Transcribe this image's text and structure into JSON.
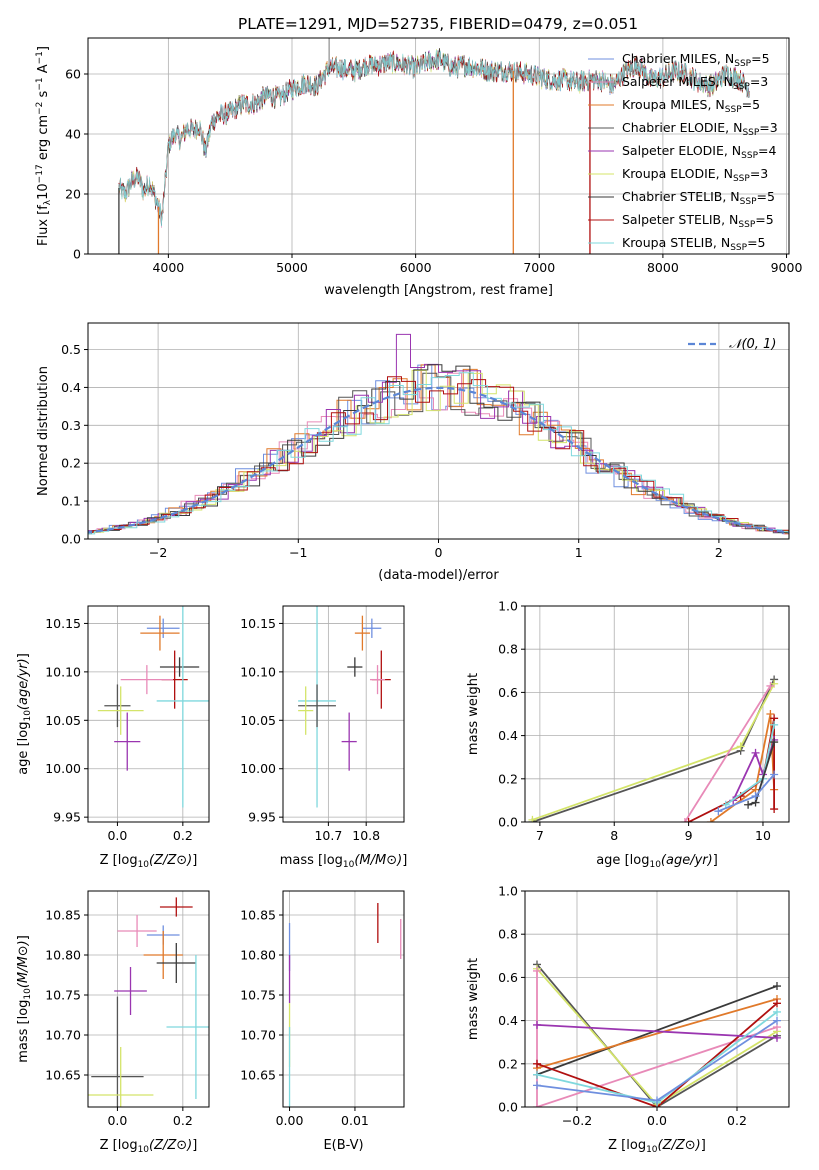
{
  "title": "PLATE=1291, MJD=52735, FIBERID=0479, z=0.051",
  "colors": {
    "Chabrier MILES": "#6f8fdf",
    "Salpeter MILES": "#e88ab8",
    "Kroupa MILES": "#e0792a",
    "Chabrier ELODIE": "#555555",
    "Salpeter ELODIE": "#9a35b0",
    "Kroupa ELODIE": "#d4e46a",
    "Chabrier STELIB": "#3a3a3a",
    "Salpeter STELIB": "#b01010",
    "Kroupa STELIB": "#7fd8dd"
  },
  "chart_data": [
    {
      "type": "line",
      "title": "PLATE=1291, MJD=52735, FIBERID=0479, z=0.051",
      "xlabel": "wavelength [Angstrom, rest frame]",
      "ylabel": "Flux [f_λ 10^-17 erg cm^-2 s^-1 A^-1]",
      "ylabel_parts": [
        "Flux [f",
        "λ",
        "10",
        "−17",
        " erg cm",
        "−2",
        " s",
        "−1",
        " A",
        "−1",
        "]"
      ],
      "xlim": [
        3350,
        9020
      ],
      "ylim": [
        0,
        72
      ],
      "xticks": [
        4000,
        5000,
        6000,
        7000,
        8000,
        9000
      ],
      "yticks": [
        0,
        20,
        40,
        60
      ],
      "legend_placement": "right",
      "legend": [
        {
          "name": "Chabrier MILES",
          "nssp": "5"
        },
        {
          "name": "Salpeter MILES",
          "nssp": "3"
        },
        {
          "name": "Kroupa MILES",
          "nssp": "5"
        },
        {
          "name": "Chabrier ELODIE",
          "nssp": "3"
        },
        {
          "name": "Salpeter ELODIE",
          "nssp": "4"
        },
        {
          "name": "Kroupa ELODIE",
          "nssp": "3"
        },
        {
          "name": "Chabrier STELIB",
          "nssp": "5"
        },
        {
          "name": "Salpeter STELIB",
          "nssp": "5"
        },
        {
          "name": "Kroupa STELIB",
          "nssp": "5"
        }
      ],
      "legend_text": [
        "Chabrier MILES, N",
        "SSP",
        "=5"
      ],
      "envelope": {
        "x": [
          3600,
          3650,
          3700,
          3750,
          3800,
          3850,
          3900,
          3950,
          4000,
          4050,
          4100,
          4150,
          4200,
          4250,
          4300,
          4350,
          4400,
          4500,
          4600,
          4700,
          4800,
          4900,
          5000,
          5100,
          5200,
          5300,
          5400,
          5500,
          5600,
          5700,
          5800,
          5900,
          6000,
          6100,
          6200,
          6300,
          6400,
          6500,
          6600,
          6700,
          6800,
          6900,
          7000,
          7100,
          7200,
          7300,
          7400,
          7500,
          7600,
          7700,
          7800,
          7900,
          8000,
          8100,
          8200,
          8300,
          8400,
          8500,
          8600,
          8700
        ],
        "y": [
          22,
          20,
          24,
          26,
          21,
          24,
          18,
          12,
          36,
          40,
          38,
          42,
          41,
          43,
          34,
          44,
          46,
          47,
          50,
          50,
          53,
          52,
          55,
          57,
          56,
          62,
          62,
          61,
          63,
          63,
          64,
          63,
          62,
          64,
          65,
          62,
          63,
          62,
          61,
          61,
          61,
          60,
          59,
          58,
          58,
          57,
          58,
          58,
          56,
          61,
          63,
          58,
          59,
          61,
          60,
          57,
          56,
          60,
          59,
          55
        ]
      },
      "drops": [
        {
          "x": 3600,
          "to": 0,
          "series": "Chabrier STELIB"
        },
        {
          "x": 3920,
          "to": 0,
          "series": "Kroupa MILES"
        },
        {
          "x": 6790,
          "to": 0,
          "series": "Kroupa MILES"
        },
        {
          "x": 7410,
          "to": 0,
          "series": "Salpeter STELIB"
        }
      ]
    },
    {
      "type": "bar",
      "subtype": "step-histogram",
      "xlabel": "(data-model)/error",
      "ylabel": "Normed distribution",
      "xlim": [
        -2.5,
        2.5
      ],
      "ylim": [
        0,
        0.57
      ],
      "xticks": [
        -2,
        -1,
        0,
        1,
        2
      ],
      "xtick_labels": [
        "−2",
        "−1",
        "0",
        "1",
        "2"
      ],
      "yticks": [
        0.0,
        0.1,
        0.2,
        0.3,
        0.4,
        0.5
      ],
      "legend": [
        {
          "name": "𝒩(0, 1)",
          "style": "dashed"
        }
      ],
      "bin_width": 0.1,
      "normal_curve": {
        "mean": 0,
        "sigma": 1
      }
    },
    {
      "type": "scatter",
      "subtype": "errorbar",
      "xlabel": "Z [log10(Z/Z⊙)]",
      "ylabel": "age  [log10(age/yr)]",
      "xlim": [
        -0.09,
        0.28
      ],
      "ylim": [
        9.945,
        10.168
      ],
      "xticks": [
        0.0,
        0.2
      ],
      "yticks": [
        9.95,
        10.0,
        10.05,
        10.1,
        10.15
      ],
      "points": [
        {
          "series": "Chabrier MILES",
          "x": 0.14,
          "xerr": 0.05,
          "y": 10.145,
          "yerr": 0.01
        },
        {
          "series": "Kroupa MILES",
          "x": 0.13,
          "xerr": 0.06,
          "y": 10.14,
          "yerr": 0.018
        },
        {
          "series": "Chabrier STELIB",
          "x": 0.19,
          "xerr": 0.06,
          "y": 10.105,
          "yerr": 0.01
        },
        {
          "series": "Salpeter STELIB",
          "x": 0.175,
          "xerr": 0.04,
          "y": 10.092,
          "yerr": 0.03
        },
        {
          "series": "Salpeter MILES",
          "x": 0.09,
          "xerr": 0.08,
          "y": 10.092,
          "yerr": 0.015
        },
        {
          "series": "Kroupa STELIB",
          "x": 0.2,
          "xerr": 0.08,
          "y": 10.07,
          "yerr": 0.11
        },
        {
          "series": "Chabrier ELODIE",
          "x": 0.0,
          "xerr": 0.04,
          "y": 10.065,
          "yerr": 0.022
        },
        {
          "series": "Kroupa ELODIE",
          "x": 0.01,
          "xerr": 0.07,
          "y": 10.06,
          "yerr": 0.025
        },
        {
          "series": "Salpeter ELODIE",
          "x": 0.03,
          "xerr": 0.04,
          "y": 10.028,
          "yerr": 0.03
        }
      ]
    },
    {
      "type": "scatter",
      "subtype": "errorbar",
      "xlabel": "mass [log10(M/M⊙)]",
      "ylabel": "",
      "xlim": [
        10.58,
        10.9
      ],
      "ylim": [
        9.945,
        10.168
      ],
      "xticks": [
        10.7,
        10.8
      ],
      "yticks": [
        9.95,
        10.0,
        10.05,
        10.1,
        10.15
      ],
      "points": [
        {
          "series": "Chabrier MILES",
          "x": 10.815,
          "xerr": 0.025,
          "y": 10.145,
          "yerr": 0.01
        },
        {
          "series": "Kroupa MILES",
          "x": 10.79,
          "xerr": 0.02,
          "y": 10.14,
          "yerr": 0.018
        },
        {
          "series": "Chabrier STELIB",
          "x": 10.77,
          "xerr": 0.02,
          "y": 10.105,
          "yerr": 0.01
        },
        {
          "series": "Salpeter STELIB",
          "x": 10.84,
          "xerr": 0.025,
          "y": 10.092,
          "yerr": 0.03
        },
        {
          "series": "Salpeter MILES",
          "x": 10.83,
          "xerr": 0.02,
          "y": 10.092,
          "yerr": 0.015
        },
        {
          "series": "Kroupa STELIB",
          "x": 10.67,
          "xerr": 0.05,
          "y": 10.07,
          "yerr": 0.11
        },
        {
          "series": "Chabrier ELODIE",
          "x": 10.67,
          "xerr": 0.05,
          "y": 10.065,
          "yerr": 0.022
        },
        {
          "series": "Kroupa ELODIE",
          "x": 10.64,
          "xerr": 0.02,
          "y": 10.06,
          "yerr": 0.025
        },
        {
          "series": "Salpeter ELODIE",
          "x": 10.755,
          "xerr": 0.02,
          "y": 10.028,
          "yerr": 0.03
        }
      ]
    },
    {
      "type": "line",
      "xlabel": "age  [log10(age/yr)]",
      "ylabel": "mass weight",
      "xlim": [
        6.8,
        10.35
      ],
      "ylim": [
        0,
        1.0
      ],
      "xticks": [
        7,
        8,
        9,
        10
      ],
      "yticks": [
        0.0,
        0.2,
        0.4,
        0.6,
        0.8,
        1.0
      ],
      "series": [
        {
          "name": "Chabrier ELODIE",
          "x": [
            6.9,
            9.7,
            10.15
          ],
          "y": [
            0.0,
            0.33,
            0.66
          ]
        },
        {
          "name": "Kroupa ELODIE",
          "x": [
            6.9,
            9.7,
            10.15
          ],
          "y": [
            0.01,
            0.35,
            0.64
          ]
        },
        {
          "name": "Salpeter MILES",
          "x": [
            8.95,
            10.1
          ],
          "y": [
            0.0,
            0.63
          ]
        },
        {
          "name": "Kroupa MILES",
          "x": [
            9.3,
            9.9,
            10.1,
            10.15
          ],
          "y": [
            0.0,
            0.15,
            0.5,
            0.15
          ]
        },
        {
          "name": "Salpeter STELIB",
          "x": [
            9.0,
            9.7,
            10.0,
            10.15,
            10.15
          ],
          "y": [
            0.0,
            0.12,
            0.2,
            0.48,
            0.06
          ]
        },
        {
          "name": "Salpeter ELODIE",
          "x": [
            9.6,
            9.9,
            10.0,
            10.15
          ],
          "y": [
            0.1,
            0.32,
            0.22,
            0.38
          ]
        },
        {
          "name": "Kroupa STELIB",
          "x": [
            9.5,
            10.0,
            10.15
          ],
          "y": [
            0.08,
            0.2,
            0.45
          ]
        },
        {
          "name": "Chabrier STELIB",
          "x": [
            9.8,
            9.9,
            10.15
          ],
          "y": [
            0.08,
            0.09,
            0.37
          ]
        },
        {
          "name": "Chabrier MILES",
          "x": [
            9.4,
            9.9,
            10.15
          ],
          "y": [
            0.05,
            0.12,
            0.22
          ]
        }
      ]
    },
    {
      "type": "scatter",
      "subtype": "errorbar",
      "xlabel": "Z [log10(Z/Z⊙)]",
      "ylabel": "mass [log10(M/M⊙)]",
      "xlim": [
        -0.09,
        0.28
      ],
      "ylim": [
        10.61,
        10.88
      ],
      "xticks": [
        0.0,
        0.2
      ],
      "yticks": [
        10.65,
        10.7,
        10.75,
        10.8,
        10.85
      ],
      "points": [
        {
          "series": "Salpeter STELIB",
          "x": 0.18,
          "xerr": 0.05,
          "y": 10.86,
          "yerr": 0.012
        },
        {
          "series": "Salpeter MILES",
          "x": 0.06,
          "xerr": 0.06,
          "y": 10.83,
          "yerr": 0.02
        },
        {
          "series": "Chabrier MILES",
          "x": 0.14,
          "xerr": 0.05,
          "y": 10.825,
          "yerr": 0.012
        },
        {
          "series": "Kroupa MILES",
          "x": 0.14,
          "xerr": 0.06,
          "y": 10.8,
          "yerr": 0.03
        },
        {
          "series": "Chabrier STELIB",
          "x": 0.18,
          "xerr": 0.06,
          "y": 10.79,
          "yerr": 0.025
        },
        {
          "series": "Salpeter ELODIE",
          "x": 0.04,
          "xerr": 0.05,
          "y": 10.755,
          "yerr": 0.03
        },
        {
          "series": "Kroupa STELIB",
          "x": 0.24,
          "xerr": 0.09,
          "y": 10.71,
          "yerr": 0.09
        },
        {
          "series": "Chabrier ELODIE",
          "x": 0.0,
          "xerr": 0.08,
          "y": 10.648,
          "yerr": 0.1
        },
        {
          "series": "Kroupa ELODIE",
          "x": 0.01,
          "xerr": 0.1,
          "y": 10.625,
          "yerr": 0.06
        }
      ]
    },
    {
      "type": "scatter",
      "subtype": "errorbar",
      "xlabel": "E(B-V)",
      "ylabel": "",
      "xlim": [
        -0.001,
        0.0175
      ],
      "ylim": [
        10.61,
        10.88
      ],
      "xticks": [
        0.0,
        0.01
      ],
      "yticks": [
        10.65,
        10.7,
        10.75,
        10.8,
        10.85
      ],
      "points": [
        {
          "series": "Salpeter STELIB",
          "x": 0.0135,
          "xerr": 0,
          "y": 10.84,
          "yerr": 0.025
        },
        {
          "series": "Salpeter MILES",
          "x": 0.017,
          "xerr": 0,
          "y": 10.82,
          "yerr": 0.025
        },
        {
          "series": "Chabrier MILES",
          "x": 0.0,
          "xerr": 0,
          "y": 10.81,
          "yerr": 0.03
        },
        {
          "series": "Salpeter ELODIE",
          "x": 0.0,
          "xerr": 0,
          "y": 10.77,
          "yerr": 0.03
        },
        {
          "series": "Kroupa ELODIE",
          "x": 0.0,
          "xerr": 0,
          "y": 10.7,
          "yerr": 0.04
        },
        {
          "series": "Kroupa STELIB",
          "x": 0.0,
          "xerr": 0,
          "y": 10.66,
          "yerr": 0.05
        }
      ]
    },
    {
      "type": "line",
      "xlabel": "Z [log10(Z/Z⊙)]",
      "ylabel": "mass weight",
      "xlim": [
        -0.33,
        0.33
      ],
      "ylim": [
        0,
        1.0
      ],
      "xticks": [
        -0.2,
        0.0,
        0.2
      ],
      "xtick_labels": [
        "−0.2",
        "0.0",
        "0.2"
      ],
      "yticks": [
        0.0,
        0.2,
        0.4,
        0.6,
        0.8,
        1.0
      ],
      "series": [
        {
          "name": "Chabrier ELODIE",
          "x": [
            -0.3,
            0.0,
            0.3
          ],
          "y": [
            0.66,
            0.0,
            0.33
          ]
        },
        {
          "name": "Kroupa ELODIE",
          "x": [
            -0.3,
            0.0,
            0.3
          ],
          "y": [
            0.64,
            0.01,
            0.35
          ]
        },
        {
          "name": "Salpeter MILES",
          "x": [
            -0.3,
            -0.3,
            0.3
          ],
          "y": [
            0.63,
            0.0,
            0.37
          ]
        },
        {
          "name": "Chabrier STELIB",
          "x": [
            -0.3,
            0.3
          ],
          "y": [
            0.15,
            0.56
          ]
        },
        {
          "name": "Kroupa MILES",
          "x": [
            -0.3,
            0.3
          ],
          "y": [
            0.18,
            0.5
          ]
        },
        {
          "name": "Salpeter STELIB",
          "x": [
            -0.3,
            0.0,
            0.3
          ],
          "y": [
            0.2,
            0.0,
            0.48
          ]
        },
        {
          "name": "Salpeter ELODIE",
          "x": [
            -0.3,
            0.3
          ],
          "y": [
            0.38,
            0.32
          ]
        },
        {
          "name": "Kroupa STELIB",
          "x": [
            -0.3,
            0.0,
            0.3
          ],
          "y": [
            0.15,
            0.02,
            0.44
          ]
        },
        {
          "name": "Chabrier MILES",
          "x": [
            -0.3,
            0.0,
            0.3
          ],
          "y": [
            0.1,
            0.03,
            0.4
          ]
        }
      ]
    }
  ]
}
